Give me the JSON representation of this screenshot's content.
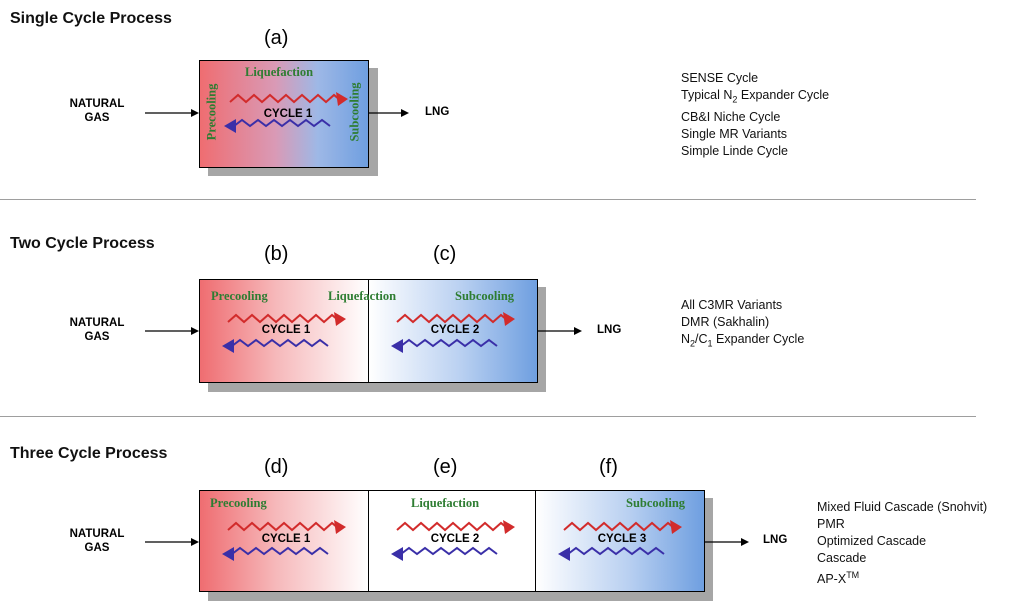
{
  "sections": [
    {
      "title": "Single Cycle Process",
      "letters": [
        "(a)"
      ],
      "natural_gas": [
        "NATURAL",
        "GAS"
      ],
      "lng": "LNG",
      "labels": {
        "liquefaction": "Liquefaction",
        "precooling": "Precooling",
        "subcooling": "Subcooling"
      },
      "cycles": [
        "CYCLE 1"
      ],
      "list": [
        "SENSE Cycle",
        "Typical N2 Expander Cycle",
        "CB&I Niche Cycle",
        "Single MR Variants",
        "Simple Linde Cycle"
      ]
    },
    {
      "title": "Two Cycle Process",
      "letters": [
        "(b)",
        "(c)"
      ],
      "natural_gas": [
        "NATURAL",
        "GAS"
      ],
      "lng": "LNG",
      "labels": {
        "precooling": "Precooling",
        "liquefaction": "Liquefaction",
        "subcooling": "Subcooling"
      },
      "cycles": [
        "CYCLE 1",
        "CYCLE 2"
      ],
      "list": [
        "All C3MR Variants",
        "DMR (Sakhalin)",
        "N2/C1 Expander Cycle"
      ]
    },
    {
      "title": "Three Cycle Process",
      "letters": [
        "(d)",
        "(e)",
        "(f)"
      ],
      "natural_gas": [
        "NATURAL",
        "GAS"
      ],
      "lng": "LNG",
      "labels": {
        "precooling": "Precooling",
        "liquefaction": "Liquefaction",
        "subcooling": "Subcooling"
      },
      "cycles": [
        "CYCLE 1",
        "CYCLE 2",
        "CYCLE 3"
      ],
      "list": [
        "Mixed Fluid Cascade (Snohvit)",
        "PMR",
        "Optimized Cascade",
        "Cascade",
        "AP-X™"
      ]
    }
  ],
  "colors": {
    "warm": "#ee6f73",
    "cold": "#6f9fe0",
    "label_green": "#2e7d32",
    "arrow_red": "#d22b2b",
    "arrow_blue": "#3a2fa8"
  }
}
